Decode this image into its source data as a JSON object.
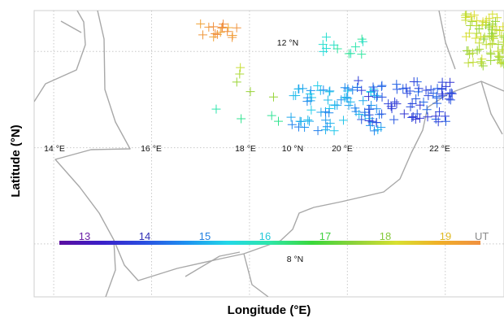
{
  "axes": {
    "xlabel": "Longitude (°E)",
    "ylabel": "Latitude (°N)"
  },
  "map_labels": {
    "lon": [
      "14 °E",
      "16 °E",
      "18 °E",
      "20 °E",
      "22 °E"
    ],
    "lat": [
      "12 °N",
      "10 °N",
      "8 °N"
    ]
  },
  "colorbar": {
    "unit": "UT",
    "ticks": [
      {
        "label": "13",
        "value": 13,
        "color": "#6a1fa6"
      },
      {
        "label": "14",
        "value": 14,
        "color": "#2f2fb5"
      },
      {
        "label": "15",
        "value": 15,
        "color": "#1f7fe0"
      },
      {
        "label": "16",
        "value": 16,
        "color": "#22c8d8"
      },
      {
        "label": "17",
        "value": 17,
        "color": "#3fcf3f"
      },
      {
        "label": "18",
        "value": 18,
        "color": "#86c93a"
      },
      {
        "label": "19",
        "value": 19,
        "color": "#e0b820"
      }
    ],
    "range": [
      12.5,
      19.5
    ],
    "colors": [
      "#5b0ea0",
      "#3a1fc8",
      "#2a4ee0",
      "#1e90f0",
      "#22d8e8",
      "#2ee6a8",
      "#3ad83a",
      "#8cd23a",
      "#d8e030",
      "#f0b028",
      "#f09040"
    ]
  },
  "style": {
    "marker": "plus",
    "border_color": "#a8a8a8",
    "grid_color": "#c8c8c8",
    "frame_color": "#cfcfcf"
  },
  "chart_data": {
    "type": "scatter",
    "x_range": [
      13.6,
      23.2
    ],
    "y_range": [
      6.9,
      12.85
    ],
    "grid": true,
    "clusters": [
      {
        "lon": [
          17.0,
          17.8
        ],
        "lat": [
          12.25,
          12.6
        ],
        "n": 16,
        "time_ut": 19.3
      },
      {
        "lon": [
          17.4,
          18.6
        ],
        "lat": [
          11.0,
          12.0
        ],
        "n": 5,
        "time_ut": 17.6
      },
      {
        "lon": [
          16.9,
          18.7
        ],
        "lat": [
          10.35,
          10.85
        ],
        "n": 4,
        "time_ut": 16.0
      },
      {
        "lon": [
          19.5,
          20.4
        ],
        "lat": [
          11.9,
          12.3
        ],
        "n": 12,
        "time_ut": 15.8
      },
      {
        "lon": [
          18.8,
          20.7
        ],
        "lat": [
          10.35,
          11.3
        ],
        "n": 70,
        "time_ut": 14.8
      },
      {
        "lon": [
          20.2,
          22.2
        ],
        "lat": [
          10.5,
          11.4
        ],
        "n": 75,
        "time_ut": 13.9
      },
      {
        "lon": [
          22.4,
          23.2
        ],
        "lat": [
          11.7,
          12.8
        ],
        "n": 75,
        "time_ut": 17.8
      }
    ]
  }
}
